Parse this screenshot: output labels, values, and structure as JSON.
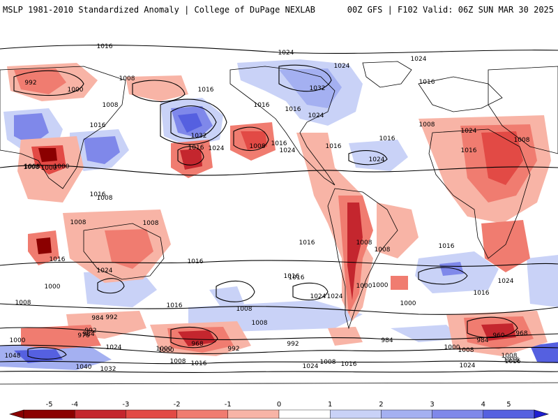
{
  "header": {
    "left_title": "MSLP 1981-2010 Standardized Anomaly | College of DuPage NEXLAB",
    "right_title": "00Z GFS | F102 Valid: 06Z SUN MAR 30 2025"
  },
  "colors": {
    "neg5": "#8b0000",
    "neg4": "#c4262e",
    "neg3": "#e24a45",
    "neg2": "#f07c70",
    "neg1": "#f8b4a6",
    "zero": "#ffffff",
    "pos1": "#c9d2f7",
    "pos2": "#a4b0f1",
    "pos3": "#7f88ea",
    "pos4": "#5560e0",
    "pos5": "#1f1fd1"
  },
  "colorbar": {
    "ticks": [
      "-5",
      "-4",
      "-3",
      "-2",
      "-1",
      "0",
      "1",
      "2",
      "3",
      "4",
      "5"
    ]
  },
  "contour_labels": [
    "1016",
    "1024",
    "1024",
    "1024",
    "992",
    "1000",
    "1008",
    "1016",
    "1008",
    "1016",
    "1032",
    "1016",
    "1008",
    "1024",
    "1016",
    "1024",
    "1016",
    "1000",
    "1016",
    "1008",
    "1024",
    "1032",
    "1016",
    "1024",
    "1016",
    "1008",
    "1016",
    "1016",
    "1024",
    "1008",
    "1008",
    "1016",
    "1000",
    "1008",
    "1008",
    "1008",
    "1016",
    "1008",
    "1016",
    "1008",
    "1016",
    "1024",
    "1000",
    "1008",
    "1016",
    "1016",
    "1000",
    "1024",
    "1024",
    "1016",
    "1000",
    "1000",
    "1016",
    "1008",
    "1024",
    "1016",
    "1008",
    "992",
    "984",
    "992",
    "984",
    "976",
    "968",
    "992",
    "1000",
    "1024",
    "992",
    "984",
    "1008",
    "1000",
    "960",
    "984",
    "968",
    "1000",
    "1048",
    "1000",
    "1008",
    "1016",
    "1040",
    "1032",
    "1024",
    "1008",
    "1016",
    "1024",
    "1008",
    "1016",
    "1016"
  ]
}
